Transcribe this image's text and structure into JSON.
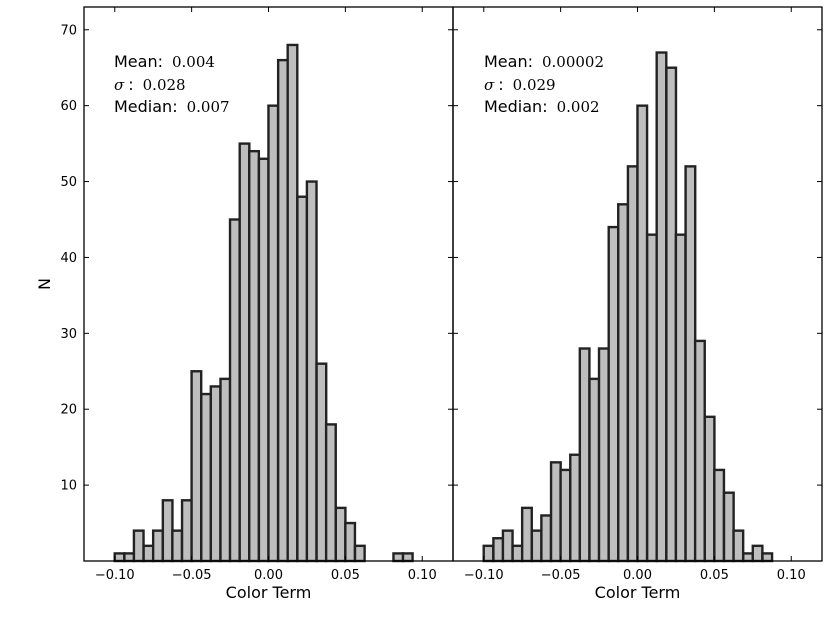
{
  "chart_data": [
    {
      "type": "bar",
      "xlabel": "Color Term",
      "ylabel": "N",
      "xlim": [
        -0.12,
        0.12
      ],
      "ylim": [
        0,
        73
      ],
      "x_ticks": [
        -0.1,
        -0.05,
        0.0,
        0.05,
        0.1
      ],
      "x_tick_labels": [
        "−0.10",
        "−0.05",
        "0.00",
        "0.05",
        "0.10"
      ],
      "y_ticks": [
        10,
        20,
        30,
        40,
        50,
        60,
        70
      ],
      "y_tick_labels": [
        "10",
        "20",
        "30",
        "40",
        "50",
        "60",
        "70"
      ],
      "bin_width": 0.00625,
      "bar_color": "#bebebe",
      "edge_color": "#222222",
      "stats": {
        "mean_label": "Mean:",
        "mean_value": "0.004",
        "sigma_symbol": "σ",
        "sigma_sep": ":",
        "sigma_value": "0.028",
        "median_label": "Median:",
        "median_value": "0.007"
      },
      "bars": [
        {
          "x": -0.0969,
          "y": 1
        },
        {
          "x": -0.0906,
          "y": 1
        },
        {
          "x": -0.0844,
          "y": 4
        },
        {
          "x": -0.0781,
          "y": 2
        },
        {
          "x": -0.0719,
          "y": 4
        },
        {
          "x": -0.0656,
          "y": 8
        },
        {
          "x": -0.0594,
          "y": 4
        },
        {
          "x": -0.0531,
          "y": 8
        },
        {
          "x": -0.0469,
          "y": 25
        },
        {
          "x": -0.0406,
          "y": 22
        },
        {
          "x": -0.0344,
          "y": 23
        },
        {
          "x": -0.0281,
          "y": 24
        },
        {
          "x": -0.0219,
          "y": 45
        },
        {
          "x": -0.0156,
          "y": 55
        },
        {
          "x": -0.0094,
          "y": 54
        },
        {
          "x": -0.0031,
          "y": 53
        },
        {
          "x": 0.0031,
          "y": 60
        },
        {
          "x": 0.0094,
          "y": 66
        },
        {
          "x": 0.0156,
          "y": 68
        },
        {
          "x": 0.0219,
          "y": 48
        },
        {
          "x": 0.0281,
          "y": 50
        },
        {
          "x": 0.0344,
          "y": 26
        },
        {
          "x": 0.0406,
          "y": 18
        },
        {
          "x": 0.0469,
          "y": 7
        },
        {
          "x": 0.0531,
          "y": 5
        },
        {
          "x": 0.0594,
          "y": 2
        },
        {
          "x": 0.0844,
          "y": 1
        },
        {
          "x": 0.0906,
          "y": 1
        }
      ]
    },
    {
      "type": "bar",
      "xlabel": "Color Term",
      "ylabel": "",
      "xlim": [
        -0.12,
        0.12
      ],
      "ylim": [
        0,
        73
      ],
      "x_ticks": [
        -0.1,
        -0.05,
        0.0,
        0.05,
        0.1
      ],
      "x_tick_labels": [
        "−0.10",
        "−0.05",
        "0.00",
        "0.05",
        "0.10"
      ],
      "y_ticks": [
        10,
        20,
        30,
        40,
        50,
        60,
        70
      ],
      "bin_width": 0.00625,
      "bar_color": "#bebebe",
      "edge_color": "#222222",
      "stats": {
        "mean_label": "Mean:",
        "mean_value": "0.00002",
        "sigma_symbol": "σ",
        "sigma_sep": ":",
        "sigma_value": "0.029",
        "median_label": "Median:",
        "median_value": "0.002"
      },
      "bars": [
        {
          "x": -0.0969,
          "y": 2
        },
        {
          "x": -0.0906,
          "y": 3
        },
        {
          "x": -0.0844,
          "y": 4
        },
        {
          "x": -0.0781,
          "y": 2
        },
        {
          "x": -0.0719,
          "y": 7
        },
        {
          "x": -0.0656,
          "y": 4
        },
        {
          "x": -0.0594,
          "y": 6
        },
        {
          "x": -0.0531,
          "y": 13
        },
        {
          "x": -0.0469,
          "y": 12
        },
        {
          "x": -0.0406,
          "y": 14
        },
        {
          "x": -0.0344,
          "y": 28
        },
        {
          "x": -0.0281,
          "y": 24
        },
        {
          "x": -0.0219,
          "y": 28
        },
        {
          "x": -0.0156,
          "y": 44
        },
        {
          "x": -0.0094,
          "y": 47
        },
        {
          "x": -0.0031,
          "y": 52
        },
        {
          "x": 0.0031,
          "y": 60
        },
        {
          "x": 0.0094,
          "y": 43
        },
        {
          "x": 0.0156,
          "y": 67
        },
        {
          "x": 0.0219,
          "y": 65
        },
        {
          "x": 0.0281,
          "y": 43
        },
        {
          "x": 0.0344,
          "y": 52
        },
        {
          "x": 0.0406,
          "y": 29
        },
        {
          "x": 0.0469,
          "y": 19
        },
        {
          "x": 0.0531,
          "y": 12
        },
        {
          "x": 0.0594,
          "y": 9
        },
        {
          "x": 0.0656,
          "y": 4
        },
        {
          "x": 0.0719,
          "y": 1
        },
        {
          "x": 0.0781,
          "y": 2
        },
        {
          "x": 0.0844,
          "y": 1
        }
      ]
    }
  ]
}
